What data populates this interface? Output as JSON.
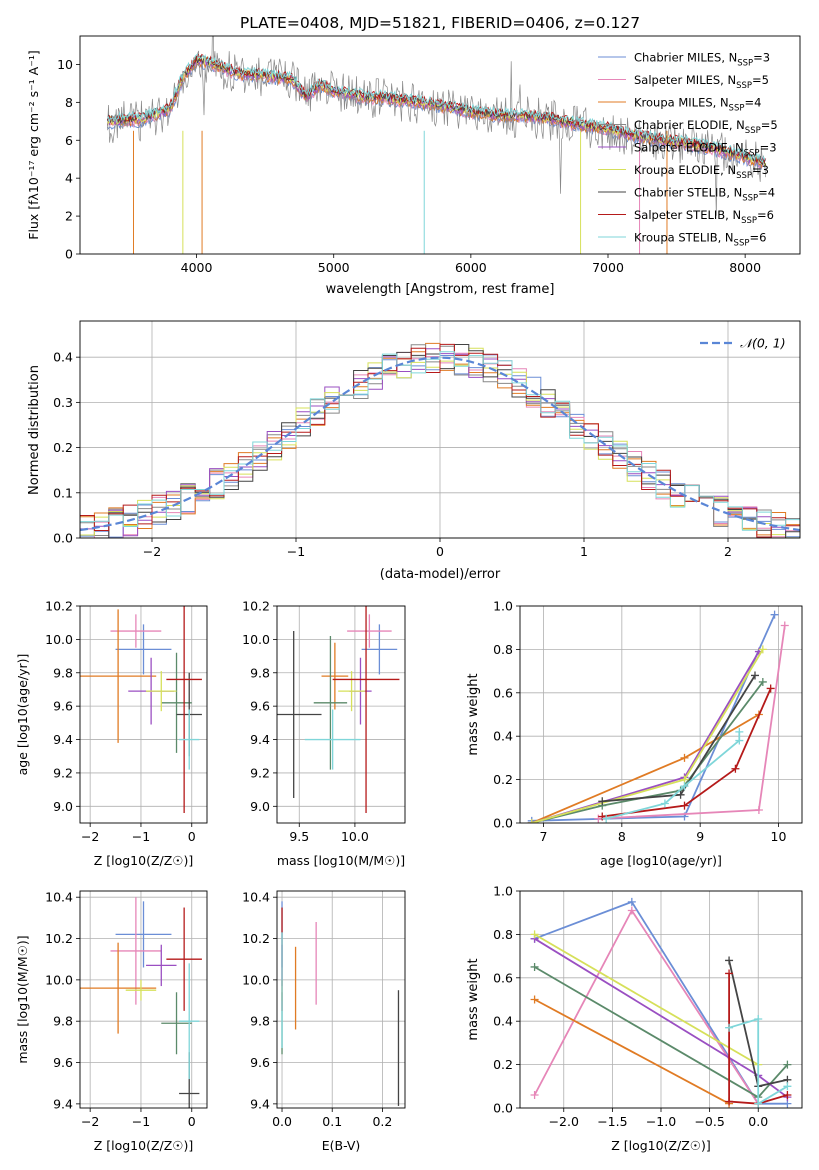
{
  "chart_data": [
    {
      "id": "spectrum",
      "type": "line",
      "title": "PLATE=0408, MJD=51821, FIBERID=0406, z=0.127",
      "xlabel": "wavelength [Angstrom, rest frame]",
      "ylabel": "Flux [f_λ 10^-17 erg cm^-2 s^-1 A^-1]",
      "xlim": [
        3150,
        8400
      ],
      "ylim": [
        0,
        11.5
      ],
      "xticks": [
        4000,
        5000,
        6000,
        7000,
        8000
      ],
      "yticks": [
        0,
        2,
        4,
        6,
        8,
        10
      ],
      "grid": false,
      "legend_position": "top-right",
      "legend": [
        {
          "base": "Chabrier MILES, N",
          "sub": "SSP",
          "tail": "=3",
          "color": "#6b8ed6"
        },
        {
          "base": "Salpeter MILES, N",
          "sub": "SSP",
          "tail": "=5",
          "color": "#e686b8"
        },
        {
          "base": "Kroupa MILES, N",
          "sub": "SSP",
          "tail": "=4",
          "color": "#e07b24"
        },
        {
          "base": "Chabrier ELODIE, N",
          "sub": "SSP",
          "tail": "=5",
          "color": "#888888"
        },
        {
          "base": "Salpeter ELODIE, N",
          "sub": "SSP",
          "tail": "=3",
          "color": "#9a4fc2"
        },
        {
          "base": "Kroupa ELODIE, N",
          "sub": "SSP",
          "tail": "=3",
          "color": "#d6e05a"
        },
        {
          "base": "Chabrier STELIB, N",
          "sub": "SSP",
          "tail": "=4",
          "color": "#444444"
        },
        {
          "base": "Salpeter STELIB, N",
          "sub": "SSP",
          "tail": "=6",
          "color": "#b51a1a"
        },
        {
          "base": "Kroupa STELIB, N",
          "sub": "SSP",
          "tail": "=6",
          "color": "#7fd6d9"
        }
      ],
      "continuum": {
        "x": [
          3400,
          3600,
          3800,
          3900,
          4000,
          4100,
          4300,
          4500,
          4700,
          4800,
          4900,
          5000,
          5200,
          5400,
          5600,
          5800,
          6000,
          6200,
          6400,
          6600,
          6800,
          7000,
          7200,
          7400,
          7600,
          7800,
          8000,
          8150
        ],
        "y": [
          7.0,
          7.1,
          7.6,
          9.3,
          10.2,
          10.1,
          9.5,
          9.4,
          9.2,
          8.3,
          8.9,
          8.6,
          8.3,
          8.2,
          8.0,
          7.8,
          7.5,
          7.3,
          7.3,
          7.1,
          6.8,
          6.6,
          6.2,
          6.0,
          5.8,
          5.5,
          5.1,
          4.8
        ]
      }
    },
    {
      "id": "residuals",
      "type": "step",
      "xlabel": "(data-model)/error",
      "ylabel": "Normed distribution",
      "xlim": [
        -2.5,
        2.5
      ],
      "ylim": [
        0,
        0.48
      ],
      "xticks": [
        -2,
        -1,
        0,
        1,
        2
      ],
      "yticks": [
        0.0,
        0.1,
        0.2,
        0.3,
        0.4
      ],
      "grid": true,
      "legend_position": "top-right",
      "legend": [
        {
          "label": "𝒩(0, 1)",
          "color": "#5a86d6"
        }
      ],
      "bin_width": 0.1
    },
    {
      "id": "age_vs_Z",
      "type": "errorbar",
      "xlabel": "Z [log10(Z/Z☉)]",
      "ylabel": "age [log10(age/yr)]",
      "xlim": [
        -2.2,
        0.3
      ],
      "ylim": [
        8.9,
        10.2
      ],
      "xticks": [
        -2,
        -1,
        0
      ],
      "yticks": [
        9.0,
        9.2,
        9.4,
        9.6,
        9.8,
        10.0,
        10.2
      ],
      "grid": true,
      "points": [
        {
          "color": "#6b8ed6",
          "x": -0.95,
          "xerr": 0.55,
          "y": 9.94,
          "yerr": 0.15
        },
        {
          "color": "#e686b8",
          "x": -1.1,
          "xerr": 0.5,
          "y": 10.05,
          "yerr": 0.1
        },
        {
          "color": "#e07b24",
          "x": -1.45,
          "xerr": 0.75,
          "y": 9.78,
          "yerr": 0.4
        },
        {
          "color": "#5b8a6a",
          "x": -0.3,
          "xerr": 0.3,
          "y": 9.62,
          "yerr": 0.3
        },
        {
          "color": "#9a4fc2",
          "x": -0.8,
          "xerr": 0.45,
          "y": 9.69,
          "yerr": 0.2
        },
        {
          "color": "#d6e05a",
          "x": -0.6,
          "xerr": 0.3,
          "y": 9.69,
          "yerr": 0.12
        },
        {
          "color": "#444444",
          "x": -0.05,
          "xerr": 0.25,
          "y": 9.55,
          "yerr": 0.25
        },
        {
          "color": "#b51a1a",
          "x": -0.15,
          "xerr": 0.35,
          "y": 9.76,
          "yerr": 0.8
        },
        {
          "color": "#7fd6d9",
          "x": -0.05,
          "xerr": 0.2,
          "y": 9.4,
          "yerr": 0.18
        }
      ]
    },
    {
      "id": "age_vs_mass",
      "type": "errorbar",
      "xlabel": "mass [log10(M/M☉)]",
      "ylabel": "",
      "xlim": [
        9.3,
        10.45
      ],
      "ylim": [
        8.9,
        10.2
      ],
      "xticks": [
        9.5,
        10.0
      ],
      "yticks": [
        9.0,
        9.2,
        9.4,
        9.6,
        9.8,
        10.0,
        10.2
      ],
      "grid": true,
      "points": [
        {
          "color": "#6b8ed6",
          "x": 10.22,
          "xerr": 0.16,
          "y": 9.94,
          "yerr": 0.15
        },
        {
          "color": "#e686b8",
          "x": 10.13,
          "xerr": 0.2,
          "y": 10.05,
          "yerr": 0.1
        },
        {
          "color": "#e07b24",
          "x": 9.82,
          "xerr": 0.12,
          "y": 9.78,
          "yerr": 0.2
        },
        {
          "color": "#5b8a6a",
          "x": 9.78,
          "xerr": 0.15,
          "y": 9.62,
          "yerr": 0.4
        },
        {
          "color": "#9a4fc2",
          "x": 10.05,
          "xerr": 0.1,
          "y": 9.69,
          "yerr": 0.2
        },
        {
          "color": "#d6e05a",
          "x": 9.97,
          "xerr": 0.12,
          "y": 9.69,
          "yerr": 0.12
        },
        {
          "color": "#444444",
          "x": 9.45,
          "xerr": 0.25,
          "y": 9.55,
          "yerr": 0.5
        },
        {
          "color": "#b51a1a",
          "x": 10.1,
          "xerr": 0.3,
          "y": 9.76,
          "yerr": 0.8
        },
        {
          "color": "#7fd6d9",
          "x": 9.8,
          "xerr": 0.25,
          "y": 9.4,
          "yerr": 0.18
        }
      ]
    },
    {
      "id": "massweight_vs_age",
      "type": "line",
      "xlabel": "age [log10(age/yr)]",
      "ylabel": "mass weight",
      "xlim": [
        6.7,
        10.3
      ],
      "ylim": [
        0,
        1.0
      ],
      "xticks": [
        7,
        8,
        9,
        10
      ],
      "yticks": [
        0.0,
        0.2,
        0.4,
        0.6,
        0.8,
        1.0
      ],
      "grid": true,
      "series": [
        {
          "color": "#6b8ed6",
          "x": [
            6.85,
            8.8,
            9.95
          ],
          "y": [
            0.01,
            0.03,
            0.96
          ]
        },
        {
          "color": "#e686b8",
          "x": [
            7.7,
            9.75,
            10.08
          ],
          "y": [
            0.02,
            0.06,
            0.91
          ]
        },
        {
          "color": "#e07b24",
          "x": [
            6.85,
            8.8,
            9.75
          ],
          "y": [
            0.0,
            0.3,
            0.5
          ]
        },
        {
          "color": "#5b8a6a",
          "x": [
            6.85,
            7.75,
            8.75,
            9.8
          ],
          "y": [
            0.0,
            0.08,
            0.15,
            0.65
          ]
        },
        {
          "color": "#9a4fc2",
          "x": [
            6.85,
            8.8,
            9.75
          ],
          "y": [
            0.0,
            0.21,
            0.79
          ]
        },
        {
          "color": "#d6e05a",
          "x": [
            6.85,
            8.8,
            9.8
          ],
          "y": [
            0.0,
            0.2,
            0.8
          ]
        },
        {
          "color": "#444444",
          "x": [
            7.75,
            8.75,
            9.7
          ],
          "y": [
            0.1,
            0.13,
            0.68
          ]
        },
        {
          "color": "#b51a1a",
          "x": [
            7.75,
            8.8,
            9.45,
            9.9
          ],
          "y": [
            0.03,
            0.08,
            0.25,
            0.62
          ]
        },
        {
          "color": "#7fd6d9",
          "x": [
            7.8,
            8.55,
            8.8,
            9.5,
            9.5
          ],
          "y": [
            0.02,
            0.09,
            0.17,
            0.38,
            0.42
          ]
        }
      ]
    },
    {
      "id": "mass_vs_Z",
      "type": "errorbar",
      "xlabel": "Z [log10(Z/Z☉)]",
      "ylabel": "mass [log10(M/M☉)]",
      "xlim": [
        -2.2,
        0.3
      ],
      "ylim": [
        9.38,
        10.43
      ],
      "xticks": [
        -2,
        -1,
        0
      ],
      "yticks": [
        9.4,
        9.6,
        9.8,
        10.0,
        10.2,
        10.4
      ],
      "grid": true,
      "points": [
        {
          "color": "#6b8ed6",
          "x": -0.95,
          "xerr": 0.55,
          "y": 10.22,
          "yerr": 0.16
        },
        {
          "color": "#e686b8",
          "x": -1.1,
          "xerr": 0.5,
          "y": 10.14,
          "yerr": 0.26
        },
        {
          "color": "#e07b24",
          "x": -1.45,
          "xerr": 0.75,
          "y": 9.96,
          "yerr": 0.22
        },
        {
          "color": "#5b8a6a",
          "x": -0.3,
          "xerr": 0.3,
          "y": 9.79,
          "yerr": 0.15
        },
        {
          "color": "#9a4fc2",
          "x": -0.6,
          "xerr": 0.3,
          "y": 10.07,
          "yerr": 0.1
        },
        {
          "color": "#d6e05a",
          "x": -1.0,
          "xerr": 0.3,
          "y": 9.95,
          "yerr": 0.05
        },
        {
          "color": "#444444",
          "x": -0.05,
          "xerr": 0.2,
          "y": 9.45,
          "yerr": 0.2
        },
        {
          "color": "#b51a1a",
          "x": -0.15,
          "xerr": 0.35,
          "y": 10.1,
          "yerr": 0.25
        },
        {
          "color": "#7fd6d9",
          "x": -0.05,
          "xerr": 0.2,
          "y": 9.8,
          "yerr": 0.28
        }
      ]
    },
    {
      "id": "mass_vs_ebv",
      "type": "errorbar",
      "xlabel": "E(B-V)",
      "ylabel": "",
      "xlim": [
        -0.01,
        0.245
      ],
      "ylim": [
        9.38,
        10.43
      ],
      "xticks": [
        0.0,
        0.1,
        0.2
      ],
      "yticks": [
        9.4,
        9.6,
        9.8,
        10.0,
        10.2,
        10.4
      ],
      "grid": true,
      "points": [
        {
          "color": "#6b8ed6",
          "x": 0.0,
          "xerr": 0,
          "y": 10.22,
          "yerr": 0.16
        },
        {
          "color": "#e686b8",
          "x": 0.068,
          "xerr": 0,
          "y": 10.08,
          "yerr": 0.2
        },
        {
          "color": "#e07b24",
          "x": 0.027,
          "xerr": 0,
          "y": 9.96,
          "yerr": 0.2
        },
        {
          "color": "#5b8a6a",
          "x": 0.0,
          "xerr": 0,
          "y": 9.79,
          "yerr": 0.15
        },
        {
          "color": "#9a4fc2",
          "x": 0.0,
          "xerr": 0,
          "y": 10.07,
          "yerr": 0.1
        },
        {
          "color": "#d6e05a",
          "x": 0.0,
          "xerr": 0,
          "y": 9.95,
          "yerr": 0.05
        },
        {
          "color": "#444444",
          "x": 0.232,
          "xerr": 0,
          "y": 9.67,
          "yerr": 0.28
        },
        {
          "color": "#b51a1a",
          "x": 0.0,
          "xerr": 0,
          "y": 10.1,
          "yerr": 0.25
        },
        {
          "color": "#7fd6d9",
          "x": 0.0,
          "xerr": 0,
          "y": 9.95,
          "yerr": 0.28
        }
      ]
    },
    {
      "id": "massweight_vs_Z",
      "type": "line",
      "xlabel": "Z [log10(Z/Z☉)]",
      "ylabel": "mass weight",
      "xlim": [
        -2.45,
        0.45
      ],
      "ylim": [
        0,
        1.0
      ],
      "xticks": [
        -2.0,
        -1.5,
        -1.0,
        -0.5,
        0.0
      ],
      "yticks": [
        0.0,
        0.2,
        0.4,
        0.6,
        0.8,
        1.0
      ],
      "grid": true,
      "series": [
        {
          "color": "#6b8ed6",
          "x": [
            -2.3,
            -1.3,
            0.0,
            0.3
          ],
          "y": [
            0.78,
            0.95,
            0.02,
            0.02
          ]
        },
        {
          "color": "#e686b8",
          "x": [
            -2.3,
            -1.3,
            0.0
          ],
          "y": [
            0.06,
            0.91,
            0.02
          ]
        },
        {
          "color": "#e07b24",
          "x": [
            -2.3,
            -0.3
          ],
          "y": [
            0.5,
            0.02
          ]
        },
        {
          "color": "#5b8a6a",
          "x": [
            -2.3,
            0.0,
            0.3
          ],
          "y": [
            0.65,
            0.05,
            0.2
          ]
        },
        {
          "color": "#9a4fc2",
          "x": [
            -2.3,
            0.0,
            0.3
          ],
          "y": [
            0.78,
            0.15,
            0.05
          ]
        },
        {
          "color": "#d6e05a",
          "x": [
            -2.3,
            0.0
          ],
          "y": [
            0.8,
            0.2
          ]
        },
        {
          "color": "#444444",
          "x": [
            -0.3,
            0.0,
            0.3
          ],
          "y": [
            0.68,
            0.1,
            0.13
          ]
        },
        {
          "color": "#b51a1a",
          "x": [
            -0.3,
            -0.3,
            0.0,
            0.3
          ],
          "y": [
            0.62,
            0.03,
            0.02,
            0.06
          ]
        },
        {
          "color": "#7fd6d9",
          "x": [
            -0.3,
            0.0,
            0.0,
            0.3
          ],
          "y": [
            0.37,
            0.41,
            0.02,
            0.1
          ]
        }
      ]
    }
  ]
}
